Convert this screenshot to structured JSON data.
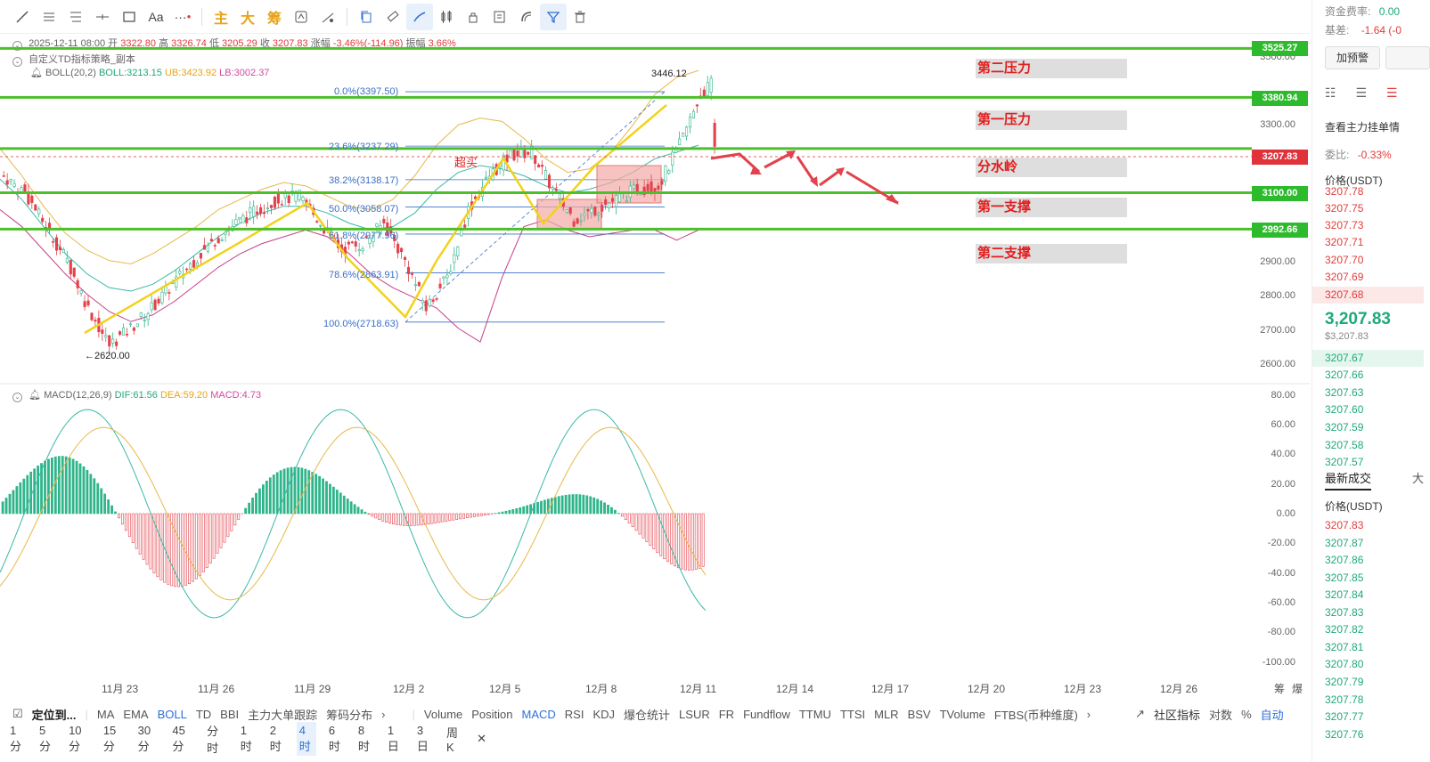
{
  "toolbar": {
    "items": [
      "line-tool",
      "horizontal-lines",
      "parallel-lines",
      "hline-tool",
      "rect-tool",
      "text-tool",
      "more-tools"
    ],
    "cn_buttons": [
      "主",
      "大",
      "筹"
    ]
  },
  "header": {
    "ohlc_line": {
      "date": "2025-12-11 08:00",
      "open_label": "开",
      "open": "3322.80",
      "high_label": "高",
      "high": "3326.74",
      "low_label": "低",
      "low": "3205.29",
      "close_label": "收",
      "close": "3207.83",
      "change_label": "涨幅",
      "change": "-3.46%(-114.96)",
      "amp_label": "振幅",
      "amp": "3.66%"
    },
    "strategy": "自定义TD指标策略_副本",
    "boll": {
      "name": "BOLL(20,2)",
      "boll": "BOLL:3213.15",
      "ub": "UB:3423.92",
      "lb": "LB:3002.37"
    },
    "macd": {
      "name": "MACD(12,26,9)",
      "dif": "DIF:61.56",
      "dea": "DEA:59.20",
      "macd": "MACD:4.73"
    }
  },
  "annotations": {
    "levels": [
      "第二压力",
      "第一压力",
      "分水岭",
      "第一支撑",
      "第二支撑"
    ],
    "overbought": "超买",
    "peak": "3446.12",
    "trough": "2620.00",
    "fib": [
      "0.0%(3397.50)",
      "23.6%(3237.29)",
      "38.2%(3138.17)",
      "50.0%(3058.07)",
      "61.8%(2977.96)",
      "78.6%(2863.91)",
      "100.0%(2718.63)"
    ]
  },
  "price_tags": [
    "3525.27",
    "3380.94",
    "3207.83",
    "3100.00",
    "2992.66"
  ],
  "price_axis": [
    "3500.00",
    "3300.00",
    "2900.00",
    "2800.00",
    "2700.00",
    "2600.00"
  ],
  "macd_axis": [
    "80.00",
    "60.00",
    "40.00",
    "20.00",
    "0.00",
    "-20.00",
    "-40.00",
    "-60.00",
    "-80.00",
    "-100.00"
  ],
  "dates": [
    "11月 23",
    "11月 26",
    "11月 29",
    "12月 2",
    "12月 5",
    "12月 8",
    "12月 11",
    "12月 14",
    "12月 17",
    "12月 20",
    "12月 23",
    "12月 26"
  ],
  "axis_right_labels": [
    "筹",
    "爆"
  ],
  "indicator_bar": {
    "locate": "定位到...",
    "main": [
      "MA",
      "EMA",
      "BOLL",
      "TD",
      "BBI",
      "主力大单跟踪",
      "筹码分布"
    ],
    "sub": [
      "Volume",
      "Position",
      "MACD",
      "RSI",
      "KDJ",
      "爆仓统计",
      "LSUR",
      "FR",
      "Fundflow",
      "TTMU",
      "TTSI",
      "MLR",
      "BSV",
      "TVolume",
      "FTBS(币种维度)"
    ],
    "right": [
      "社区指标",
      "对数",
      "%",
      "自动"
    ]
  },
  "timeframes": [
    "1分",
    "5分",
    "10分",
    "15分",
    "30分",
    "45分",
    "分时",
    "1时",
    "2时",
    "4时",
    "6时",
    "8时",
    "1日",
    "3日",
    "周K"
  ],
  "active_timeframe": "4时",
  "right_panel": {
    "funding_label": "资金费率:",
    "funding_value": "0.00",
    "basis_label": "基差:",
    "basis_value": "-1.64 (-0",
    "btn1": "加预警",
    "view_orders": "查看主力挂单情",
    "ratio_label": "委比:",
    "ratio_value": "-0.33%",
    "price_header": "价格(USDT)",
    "asks": [
      "3207.78",
      "3207.75",
      "3207.73",
      "3207.71",
      "3207.70",
      "3207.69",
      "3207.68"
    ],
    "last_price": "3,207.83",
    "last_usd": "$3,207.83",
    "bids": [
      "3207.67",
      "3207.66",
      "3207.63",
      "3207.60",
      "3207.59",
      "3207.58",
      "3207.57"
    ],
    "trades_tab": "最新成交",
    "trades_tab2": "大",
    "trades_header": "价格(USDT)",
    "trades": [
      "3207.83",
      "3207.87",
      "3207.86",
      "3207.85",
      "3207.84",
      "3207.83",
      "3207.82",
      "3207.81",
      "3207.80",
      "3207.79",
      "3207.78",
      "3207.77",
      "3207.76"
    ]
  },
  "colors": {
    "up": "#2fb58a",
    "down": "#e2424b",
    "level": "#4cbf2a",
    "boll_mid": "#3ab8a8",
    "boll_ub": "#e8b84a",
    "boll_lb": "#c53e8b",
    "fib": "#3a6fc8",
    "wave": "#f2d21b"
  }
}
